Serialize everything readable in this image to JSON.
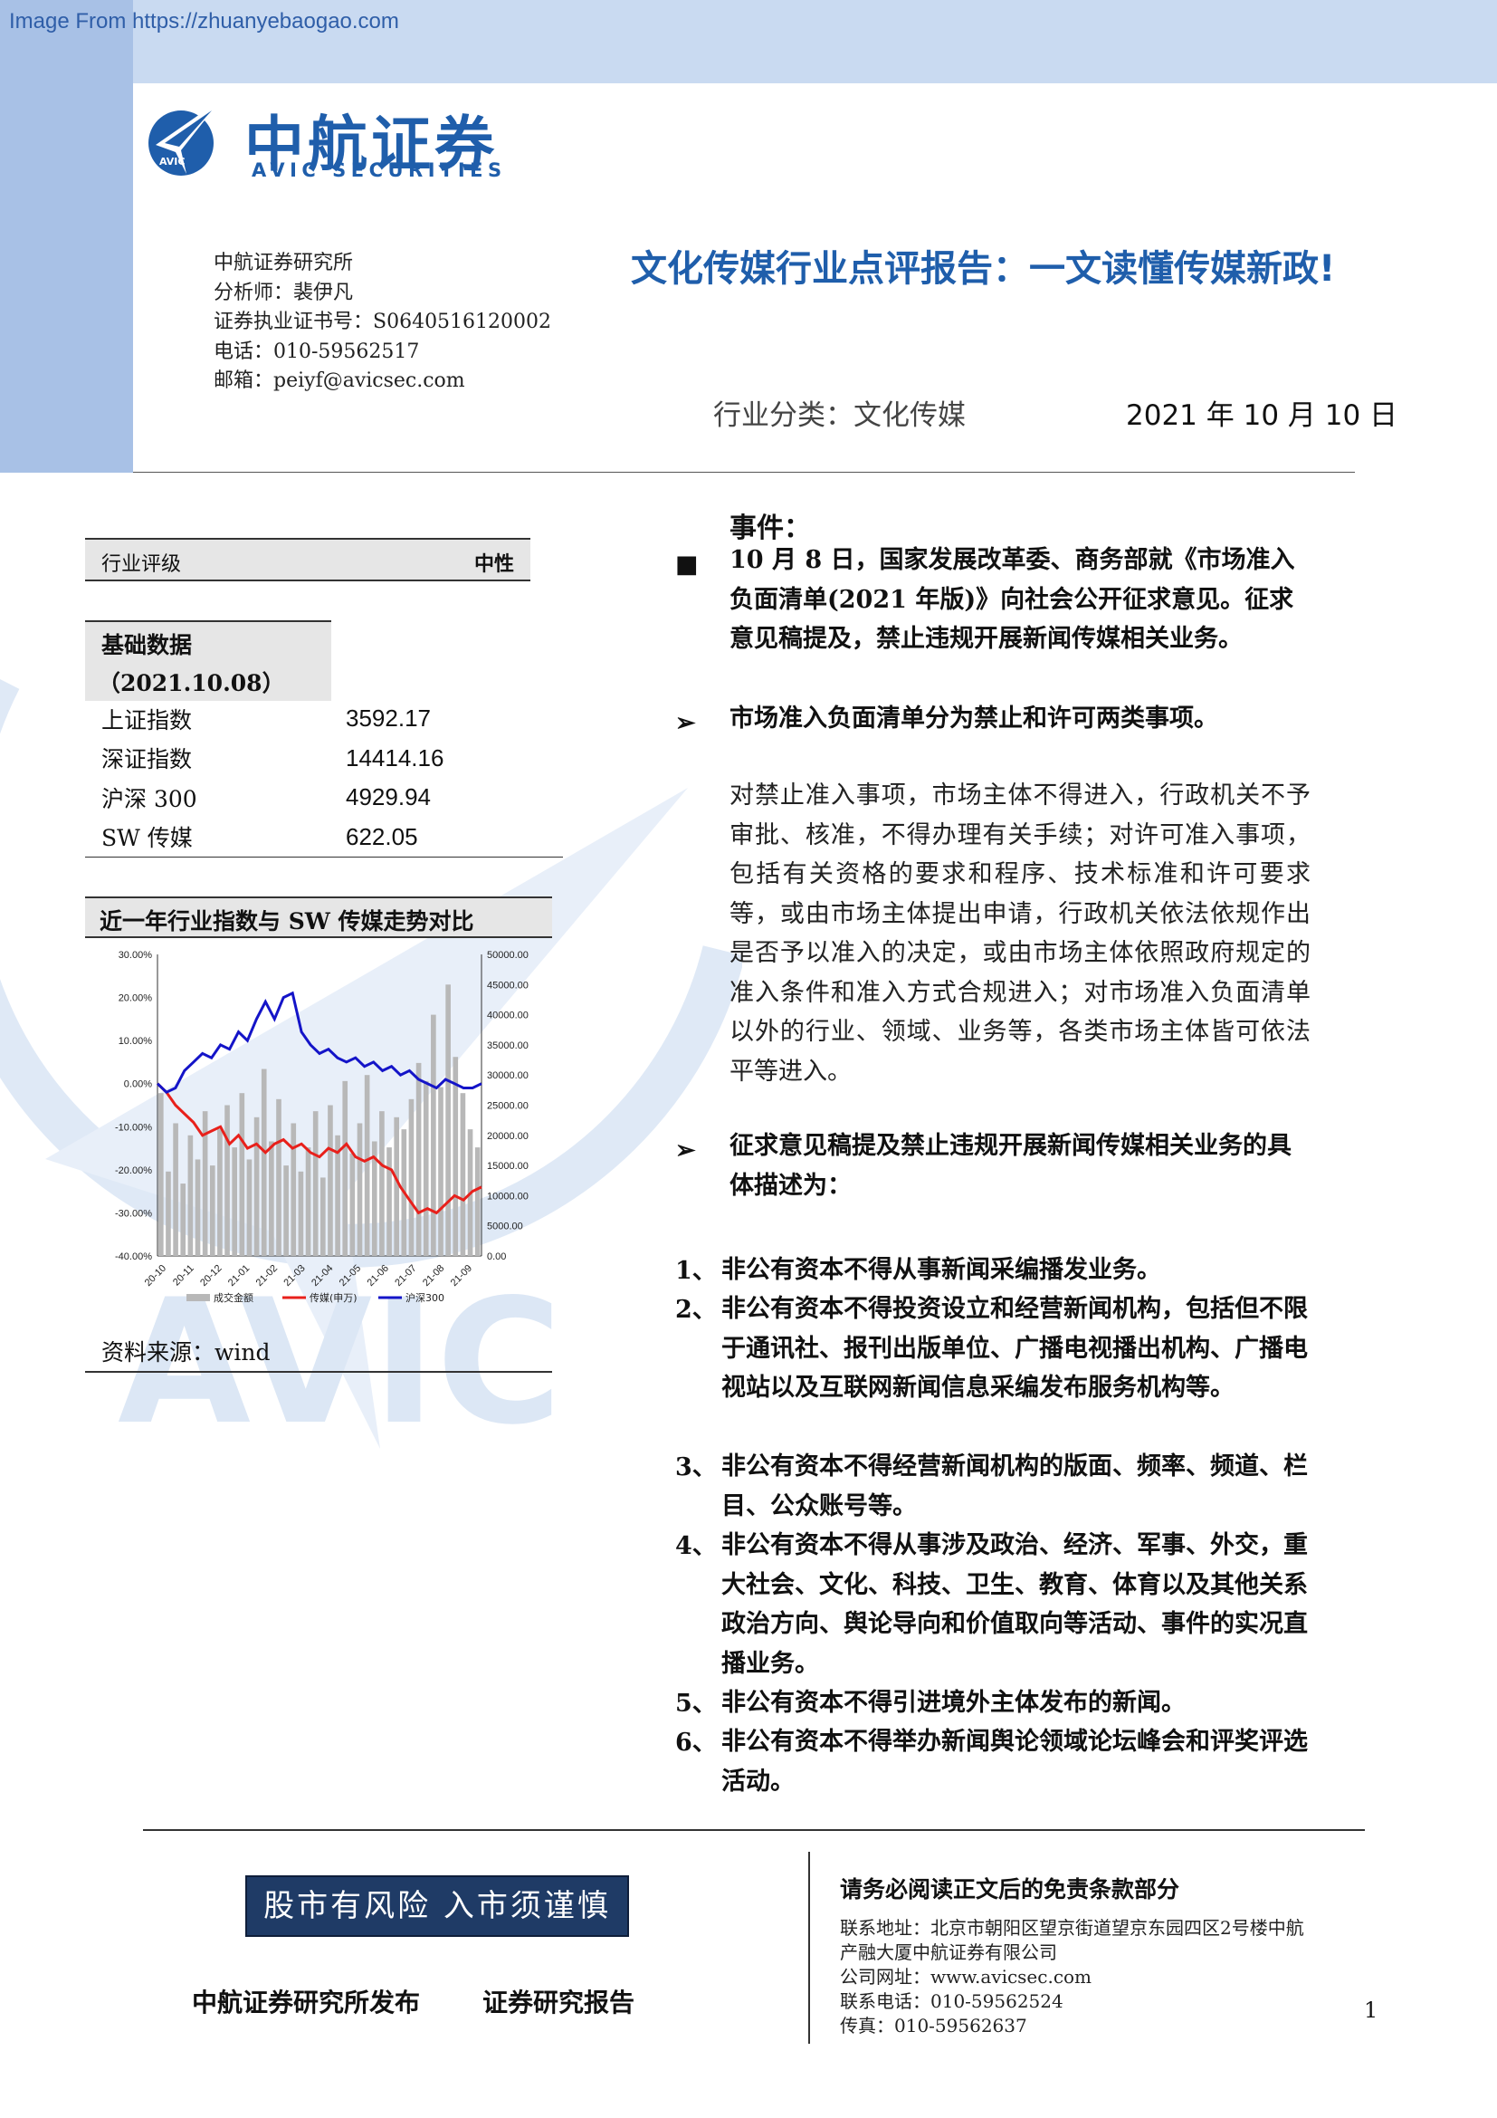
{
  "source_link": "Image From https://zhuanyebaogao.com",
  "logo": {
    "cn": "中航证券",
    "en": "AVIC SECURITIES",
    "emblem_text": "AVIC"
  },
  "watermark_text": "AVIC",
  "author_lines": [
    "中航证券研究所",
    "分析师：裴伊凡",
    "证券执业证书号：S0640516120002",
    "电话：010-59562517",
    "邮箱：peiyf@avicsec.com"
  ],
  "title": "文化传媒行业点评报告：一文读懂传媒新政!",
  "industry": "行业分类：文化传媒",
  "date": "2021 年 10 月 10 日",
  "rating": {
    "label": "行业评级",
    "value": "中性"
  },
  "basic_data": {
    "title": "基础数据",
    "date": "（2021.10.08）",
    "rows": [
      {
        "name": "上证指数",
        "value": "3592.17"
      },
      {
        "name": "深证指数",
        "value": "14414.16"
      },
      {
        "name": "沪深 300",
        "value": "4929.94"
      },
      {
        "name": "SW 传媒",
        "value": "622.05"
      }
    ]
  },
  "chart_title": "近一年行业指数与 SW 传媒走势对比",
  "chart_source": "资料来源：wind",
  "chart_data": {
    "type": "line",
    "x_tick_labels": [
      "20-10",
      "20-11",
      "20-12",
      "21-01",
      "21-02",
      "21-03",
      "21-04",
      "21-05",
      "21-06",
      "21-07",
      "21-08",
      "21-09"
    ],
    "y_left": {
      "ticks": [
        "30.00%",
        "20.00%",
        "10.00%",
        "0.00%",
        "-10.00%",
        "-20.00%",
        "-30.00%",
        "-40.00%"
      ],
      "range": [
        -40,
        30
      ]
    },
    "y_right": {
      "ticks": [
        "50000.00",
        "45000.00",
        "40000.00",
        "35000.00",
        "30000.00",
        "25000.00",
        "20000.00",
        "15000.00",
        "10000.00",
        "5000.00",
        "0.00"
      ],
      "range": [
        0,
        50000
      ]
    },
    "legend": [
      "成交金额",
      "传媒(申万)",
      "沪深300"
    ],
    "legend_position": "bottom",
    "series": [
      {
        "name": "传媒(申万)",
        "axis": "left",
        "color": "#e8201b",
        "values": [
          0,
          -2,
          -5,
          -7,
          -9,
          -12,
          -11,
          -10,
          -14,
          -12,
          -15,
          -14,
          -16,
          -14,
          -13,
          -15,
          -14,
          -16,
          -17,
          -15,
          -16,
          -14,
          -17,
          -18,
          -17,
          -19,
          -20,
          -24,
          -27,
          -30,
          -29,
          -30,
          -28,
          -26,
          -27,
          -25,
          -24
        ]
      },
      {
        "name": "沪深300",
        "axis": "left",
        "color": "#1414c8",
        "values": [
          0,
          -2,
          -1,
          3,
          5,
          7,
          6,
          9,
          8,
          12,
          10,
          15,
          19,
          15,
          20,
          21,
          12,
          9,
          7,
          8,
          6,
          5,
          6,
          4,
          5,
          3,
          4,
          2,
          3,
          1,
          0,
          -1,
          1,
          0,
          -1,
          -1,
          0
        ]
      },
      {
        "name": "成交金额",
        "axis": "right",
        "color": "#b8b8b8",
        "type": "bar",
        "values": [
          27000,
          14000,
          22000,
          12000,
          20000,
          16000,
          24000,
          15000,
          21000,
          25000,
          18000,
          27000,
          16000,
          23000,
          31000,
          19000,
          26000,
          15000,
          22000,
          14000,
          18000,
          24000,
          13000,
          25000,
          20000,
          29000,
          17000,
          22000,
          30000,
          19000,
          24000,
          18000,
          23000,
          21000,
          26000,
          32000,
          29000,
          40000,
          28000,
          45000,
          33000,
          27000,
          21000,
          18000
        ]
      }
    ]
  },
  "event": {
    "heading": "事件：",
    "intro": "10 月 8 日，国家发展改革委、商务部就《市场准入负面清单(2021 年版)》向社会公开征求意见。征求意见稿提及，禁止违规开展新闻传媒相关业务。",
    "point1": "市场准入负面清单分为禁止和许可两类事项。",
    "body": "对禁止准入事项，市场主体不得进入，行政机关不予审批、核准，不得办理有关手续；对许可准入事项，包括有关资格的要求和程序、技术标准和许可要求等，或由市场主体提出申请，行政机关依法依规作出是否予以准入的决定，或由市场主体依照政府规定的准入条件和准入方式合规进入；对市场准入负面清单以外的行业、领域、业务等，各类市场主体皆可依法平等进入。",
    "point2": "征求意见稿提及禁止违规开展新闻传媒相关业务的具体描述为：",
    "list": [
      {
        "num": "1、",
        "text": "非公有资本不得从事新闻采编播发业务。"
      },
      {
        "num": "2、",
        "text": "非公有资本不得投资设立和经营新闻机构，包括但不限于通讯社、报刊出版单位、广播电视播出机构、广播电视站以及互联网新闻信息采编发布服务机构等。"
      },
      {
        "num": "3、",
        "text": "非公有资本不得经营新闻机构的版面、频率、频道、栏目、公众账号等。"
      },
      {
        "num": "4、",
        "text": "非公有资本不得从事涉及政治、经济、军事、外交，重大社会、文化、科技、卫生、教育、体育以及其他关系政治方向、舆论导向和价值取向等活动、事件的实况直播业务。"
      },
      {
        "num": "5、",
        "text": "非公有资本不得引进境外主体发布的新闻。"
      },
      {
        "num": "6、",
        "text": "非公有资本不得举办新闻舆论领域论坛峰会和评奖评选活动。"
      }
    ]
  },
  "footer": {
    "risk": "股市有风险  入市须谨慎",
    "publisher": "中航证券研究所发布",
    "report_type": "证券研究报告",
    "disclaimer": "请务必阅读正文后的免责条款部分",
    "contact": [
      "联系地址：北京市朝阳区望京街道望京东园四区2号楼中航",
      "产融大厦中航证券有限公司",
      "公司网址：www.avicsec.com",
      "联系电话：010-59562524",
      "传真：010-59562637"
    ],
    "page": "1"
  },
  "colors": {
    "brand_blue": "#1f5eab",
    "band_light": "#c9daf1",
    "band_mid": "#a8c1e6",
    "risk_box": "#1f3b66"
  }
}
